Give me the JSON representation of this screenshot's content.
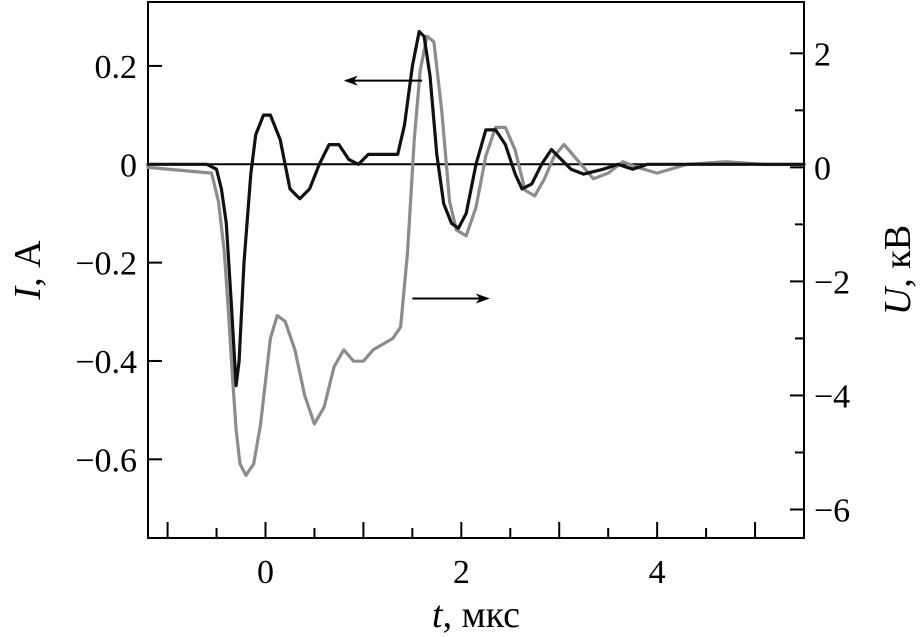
{
  "chart_data": {
    "type": "line",
    "title": "",
    "xlabel": {
      "var": "t",
      "unit": ", мкс"
    },
    "ylabel_left": {
      "var": "I",
      "unit": ", А"
    },
    "ylabel_right": {
      "var": "U",
      "unit": ", кВ"
    },
    "xlim": [
      -1.2,
      5.5
    ],
    "ylim_left": [
      -0.76,
      0.33
    ],
    "ylim_right": [
      -6.5,
      2.9
    ],
    "grid": false,
    "x_ticks": [
      -1,
      -0.5,
      0,
      0.5,
      1,
      1.5,
      2,
      2.5,
      3,
      3.5,
      4,
      4.5,
      5
    ],
    "x_tick_labels": [
      {
        "v": 0,
        "label": "0"
      },
      {
        "v": 2,
        "label": "2"
      },
      {
        "v": 4,
        "label": "4"
      }
    ],
    "y_left_ticks": [
      {
        "v": 0.2,
        "label": "0.2"
      },
      {
        "v": 0,
        "label": "0"
      },
      {
        "v": -0.2,
        "label": "−0.2"
      },
      {
        "v": -0.4,
        "label": "−0.4"
      },
      {
        "v": -0.6,
        "label": "−0.6"
      }
    ],
    "y_right_ticks": [
      {
        "v": 2,
        "label": "2"
      },
      {
        "v": 0,
        "label": "0"
      },
      {
        "v": -2,
        "label": "−2"
      },
      {
        "v": -4,
        "label": "−4"
      },
      {
        "v": -6,
        "label": "−6"
      }
    ],
    "y_right_minor": [
      1,
      -1,
      -3,
      -5
    ],
    "zero_line": 0,
    "series": [
      {
        "axis": "left",
        "color": "#111111",
        "x": [
          -1.2,
          -0.6,
          -0.5,
          -0.45,
          -0.4,
          -0.35,
          -0.3,
          -0.27,
          -0.22,
          -0.15,
          -0.1,
          -0.02,
          0.05,
          0.15,
          0.25,
          0.35,
          0.45,
          0.55,
          0.65,
          0.75,
          0.85,
          0.95,
          1.05,
          1.15,
          1.25,
          1.35,
          1.42,
          1.5,
          1.57,
          1.62,
          1.68,
          1.75,
          1.82,
          1.9,
          1.97,
          2.05,
          2.15,
          2.25,
          2.35,
          2.45,
          2.55,
          2.62,
          2.72,
          2.82,
          2.92,
          3.02,
          3.12,
          3.25,
          3.45,
          3.6,
          3.75,
          3.9,
          4.2,
          4.5,
          5.0,
          5.5
        ],
        "y": [
          0.0,
          0.0,
          -0.01,
          -0.05,
          -0.12,
          -0.28,
          -0.45,
          -0.4,
          -0.2,
          -0.02,
          0.06,
          0.1,
          0.1,
          0.05,
          -0.05,
          -0.07,
          -0.05,
          0.0,
          0.04,
          0.04,
          0.01,
          0.0,
          0.02,
          0.02,
          0.02,
          0.02,
          0.08,
          0.2,
          0.27,
          0.26,
          0.18,
          0.02,
          -0.08,
          -0.12,
          -0.13,
          -0.1,
          0.0,
          0.07,
          0.07,
          0.04,
          -0.02,
          -0.05,
          -0.04,
          0.0,
          0.03,
          0.01,
          -0.01,
          -0.02,
          -0.01,
          0.0,
          -0.01,
          0.0,
          0.0,
          0.0,
          0.0,
          0.0
        ]
      },
      {
        "axis": "right",
        "color": "#8c8c8c",
        "x": [
          -1.2,
          -0.55,
          -0.48,
          -0.42,
          -0.38,
          -0.34,
          -0.3,
          -0.26,
          -0.2,
          -0.12,
          -0.05,
          0.05,
          0.12,
          0.2,
          0.3,
          0.4,
          0.5,
          0.6,
          0.7,
          0.8,
          0.9,
          1.0,
          1.1,
          1.2,
          1.3,
          1.38,
          1.45,
          1.52,
          1.58,
          1.65,
          1.72,
          1.8,
          1.88,
          1.95,
          2.05,
          2.15,
          2.25,
          2.35,
          2.45,
          2.55,
          2.65,
          2.75,
          2.85,
          2.95,
          3.05,
          3.2,
          3.35,
          3.5,
          3.65,
          3.8,
          4.0,
          4.3,
          4.7,
          5.1,
          5.5
        ],
        "y": [
          0.0,
          -0.1,
          -0.6,
          -1.5,
          -2.5,
          -3.6,
          -4.6,
          -5.2,
          -5.4,
          -5.2,
          -4.5,
          -3.0,
          -2.6,
          -2.7,
          -3.2,
          -4.0,
          -4.5,
          -4.2,
          -3.5,
          -3.2,
          -3.4,
          -3.4,
          -3.2,
          -3.1,
          -3.0,
          -2.8,
          -1.5,
          0.5,
          1.7,
          2.3,
          2.2,
          1.0,
          -0.6,
          -1.1,
          -1.2,
          -0.7,
          0.2,
          0.7,
          0.7,
          0.3,
          -0.4,
          -0.5,
          -0.2,
          0.2,
          0.4,
          0.1,
          -0.2,
          -0.1,
          0.1,
          0.0,
          -0.1,
          0.05,
          0.1,
          0.05,
          0.05
        ]
      }
    ],
    "annotations": [
      {
        "kind": "arrow",
        "points_to": "left",
        "x_from": 1.6,
        "x_to": 0.82,
        "y": 0.17,
        "y_axis": "left"
      },
      {
        "kind": "arrow",
        "points_to": "right",
        "x_from": 1.5,
        "x_to": 2.27,
        "y": -2.3,
        "y_axis": "right"
      }
    ]
  }
}
